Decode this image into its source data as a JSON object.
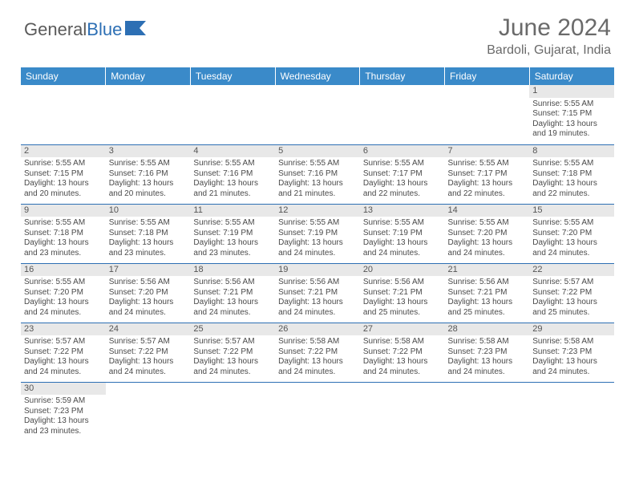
{
  "logo": {
    "text1": "General",
    "text2": "Blue"
  },
  "title": "June 2024",
  "location": "Bardoli, Gujarat, India",
  "colors": {
    "header_bg": "#3a8ac9",
    "border": "#2d6fb4",
    "daynum_bg": "#e8e8e8",
    "text": "#4a4a4a",
    "title_text": "#6a6a6a"
  },
  "day_headers": [
    "Sunday",
    "Monday",
    "Tuesday",
    "Wednesday",
    "Thursday",
    "Friday",
    "Saturday"
  ],
  "weeks": [
    [
      null,
      null,
      null,
      null,
      null,
      null,
      {
        "n": "1",
        "sr": "Sunrise: 5:55 AM",
        "ss": "Sunset: 7:15 PM",
        "dl1": "Daylight: 13 hours",
        "dl2": "and 19 minutes."
      }
    ],
    [
      {
        "n": "2",
        "sr": "Sunrise: 5:55 AM",
        "ss": "Sunset: 7:15 PM",
        "dl1": "Daylight: 13 hours",
        "dl2": "and 20 minutes."
      },
      {
        "n": "3",
        "sr": "Sunrise: 5:55 AM",
        "ss": "Sunset: 7:16 PM",
        "dl1": "Daylight: 13 hours",
        "dl2": "and 20 minutes."
      },
      {
        "n": "4",
        "sr": "Sunrise: 5:55 AM",
        "ss": "Sunset: 7:16 PM",
        "dl1": "Daylight: 13 hours",
        "dl2": "and 21 minutes."
      },
      {
        "n": "5",
        "sr": "Sunrise: 5:55 AM",
        "ss": "Sunset: 7:16 PM",
        "dl1": "Daylight: 13 hours",
        "dl2": "and 21 minutes."
      },
      {
        "n": "6",
        "sr": "Sunrise: 5:55 AM",
        "ss": "Sunset: 7:17 PM",
        "dl1": "Daylight: 13 hours",
        "dl2": "and 22 minutes."
      },
      {
        "n": "7",
        "sr": "Sunrise: 5:55 AM",
        "ss": "Sunset: 7:17 PM",
        "dl1": "Daylight: 13 hours",
        "dl2": "and 22 minutes."
      },
      {
        "n": "8",
        "sr": "Sunrise: 5:55 AM",
        "ss": "Sunset: 7:18 PM",
        "dl1": "Daylight: 13 hours",
        "dl2": "and 22 minutes."
      }
    ],
    [
      {
        "n": "9",
        "sr": "Sunrise: 5:55 AM",
        "ss": "Sunset: 7:18 PM",
        "dl1": "Daylight: 13 hours",
        "dl2": "and 23 minutes."
      },
      {
        "n": "10",
        "sr": "Sunrise: 5:55 AM",
        "ss": "Sunset: 7:18 PM",
        "dl1": "Daylight: 13 hours",
        "dl2": "and 23 minutes."
      },
      {
        "n": "11",
        "sr": "Sunrise: 5:55 AM",
        "ss": "Sunset: 7:19 PM",
        "dl1": "Daylight: 13 hours",
        "dl2": "and 23 minutes."
      },
      {
        "n": "12",
        "sr": "Sunrise: 5:55 AM",
        "ss": "Sunset: 7:19 PM",
        "dl1": "Daylight: 13 hours",
        "dl2": "and 24 minutes."
      },
      {
        "n": "13",
        "sr": "Sunrise: 5:55 AM",
        "ss": "Sunset: 7:19 PM",
        "dl1": "Daylight: 13 hours",
        "dl2": "and 24 minutes."
      },
      {
        "n": "14",
        "sr": "Sunrise: 5:55 AM",
        "ss": "Sunset: 7:20 PM",
        "dl1": "Daylight: 13 hours",
        "dl2": "and 24 minutes."
      },
      {
        "n": "15",
        "sr": "Sunrise: 5:55 AM",
        "ss": "Sunset: 7:20 PM",
        "dl1": "Daylight: 13 hours",
        "dl2": "and 24 minutes."
      }
    ],
    [
      {
        "n": "16",
        "sr": "Sunrise: 5:55 AM",
        "ss": "Sunset: 7:20 PM",
        "dl1": "Daylight: 13 hours",
        "dl2": "and 24 minutes."
      },
      {
        "n": "17",
        "sr": "Sunrise: 5:56 AM",
        "ss": "Sunset: 7:20 PM",
        "dl1": "Daylight: 13 hours",
        "dl2": "and 24 minutes."
      },
      {
        "n": "18",
        "sr": "Sunrise: 5:56 AM",
        "ss": "Sunset: 7:21 PM",
        "dl1": "Daylight: 13 hours",
        "dl2": "and 24 minutes."
      },
      {
        "n": "19",
        "sr": "Sunrise: 5:56 AM",
        "ss": "Sunset: 7:21 PM",
        "dl1": "Daylight: 13 hours",
        "dl2": "and 24 minutes."
      },
      {
        "n": "20",
        "sr": "Sunrise: 5:56 AM",
        "ss": "Sunset: 7:21 PM",
        "dl1": "Daylight: 13 hours",
        "dl2": "and 25 minutes."
      },
      {
        "n": "21",
        "sr": "Sunrise: 5:56 AM",
        "ss": "Sunset: 7:21 PM",
        "dl1": "Daylight: 13 hours",
        "dl2": "and 25 minutes."
      },
      {
        "n": "22",
        "sr": "Sunrise: 5:57 AM",
        "ss": "Sunset: 7:22 PM",
        "dl1": "Daylight: 13 hours",
        "dl2": "and 25 minutes."
      }
    ],
    [
      {
        "n": "23",
        "sr": "Sunrise: 5:57 AM",
        "ss": "Sunset: 7:22 PM",
        "dl1": "Daylight: 13 hours",
        "dl2": "and 24 minutes."
      },
      {
        "n": "24",
        "sr": "Sunrise: 5:57 AM",
        "ss": "Sunset: 7:22 PM",
        "dl1": "Daylight: 13 hours",
        "dl2": "and 24 minutes."
      },
      {
        "n": "25",
        "sr": "Sunrise: 5:57 AM",
        "ss": "Sunset: 7:22 PM",
        "dl1": "Daylight: 13 hours",
        "dl2": "and 24 minutes."
      },
      {
        "n": "26",
        "sr": "Sunrise: 5:58 AM",
        "ss": "Sunset: 7:22 PM",
        "dl1": "Daylight: 13 hours",
        "dl2": "and 24 minutes."
      },
      {
        "n": "27",
        "sr": "Sunrise: 5:58 AM",
        "ss": "Sunset: 7:22 PM",
        "dl1": "Daylight: 13 hours",
        "dl2": "and 24 minutes."
      },
      {
        "n": "28",
        "sr": "Sunrise: 5:58 AM",
        "ss": "Sunset: 7:23 PM",
        "dl1": "Daylight: 13 hours",
        "dl2": "and 24 minutes."
      },
      {
        "n": "29",
        "sr": "Sunrise: 5:58 AM",
        "ss": "Sunset: 7:23 PM",
        "dl1": "Daylight: 13 hours",
        "dl2": "and 24 minutes."
      }
    ],
    [
      {
        "n": "30",
        "sr": "Sunrise: 5:59 AM",
        "ss": "Sunset: 7:23 PM",
        "dl1": "Daylight: 13 hours",
        "dl2": "and 23 minutes."
      },
      null,
      null,
      null,
      null,
      null,
      null
    ]
  ]
}
